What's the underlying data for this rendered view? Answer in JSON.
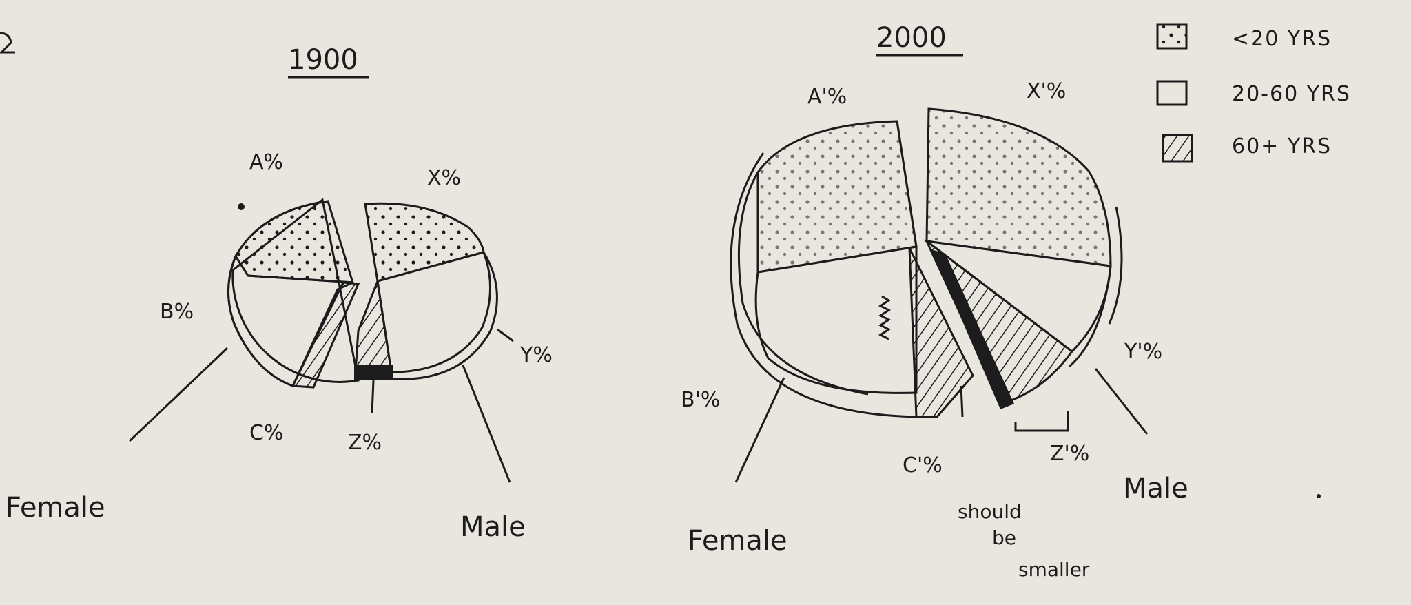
{
  "legend": [
    {
      "label": "<20 YRS",
      "pattern": "dots"
    },
    {
      "label": "20-60 YRS",
      "pattern": "blank"
    },
    {
      "label": "60+ YRS",
      "pattern": "hatch"
    }
  ],
  "chart_data": [
    {
      "type": "pie",
      "title": "1900",
      "groups": [
        {
          "name": "Female",
          "segments": [
            {
              "label": "A%",
              "age": "<20 YRS"
            },
            {
              "label": "B%",
              "age": "20-60 YRS"
            },
            {
              "label": "C%",
              "age": "60+ YRS"
            }
          ]
        },
        {
          "name": "Male",
          "segments": [
            {
              "label": "X%",
              "age": "<20 YRS"
            },
            {
              "label": "Y%",
              "age": "20-60 YRS"
            },
            {
              "label": "Z%",
              "age": "60+ YRS"
            }
          ]
        }
      ]
    },
    {
      "type": "pie",
      "title": "2000",
      "groups": [
        {
          "name": "Female",
          "segments": [
            {
              "label": "A'%",
              "age": "<20 YRS"
            },
            {
              "label": "B'%",
              "age": "20-60 YRS"
            },
            {
              "label": "C'%",
              "age": "60+ YRS"
            }
          ]
        },
        {
          "name": "Male",
          "segments": [
            {
              "label": "X'%",
              "age": "<20 YRS"
            },
            {
              "label": "Y'%",
              "age": "20-60 YRS"
            },
            {
              "label": "Z'%",
              "age": "60+ YRS"
            }
          ]
        }
      ],
      "annotations": [
        "should",
        "be",
        "smaller"
      ]
    }
  ],
  "colors": {
    "ink": "#1c1c1c",
    "paper": "#e9e6df"
  }
}
